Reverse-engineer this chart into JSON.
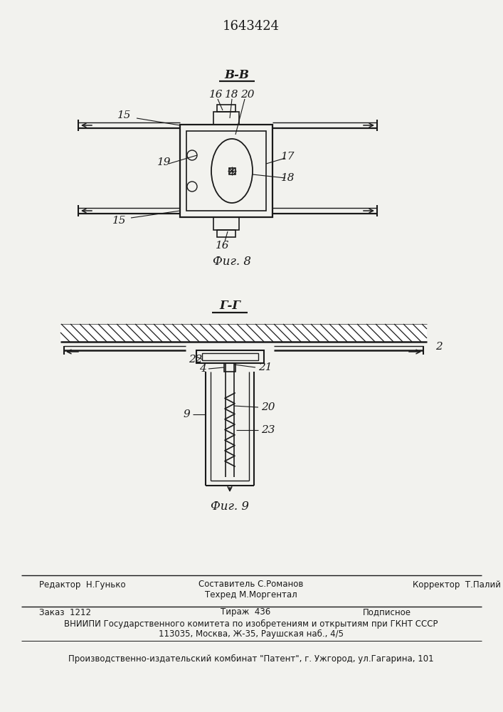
{
  "title": "1643424",
  "fig8_label": "В-В",
  "fig8_caption": "Фиг. 8",
  "fig9_label": "Г-Г",
  "fig9_caption": "Фиг. 9",
  "footer_sestavitel": "Составитель С.Романов",
  "footer_tekhred": "Техред М.Моргентал",
  "footer_redaktor": "Редактор  Н.Гунько",
  "footer_korrektor": "Корректор  Т.Палий",
  "footer_zakaz": "Заказ  1212",
  "footer_tirazh": "Тираж  436",
  "footer_podpisnoe": "Подписное",
  "footer_vniipи": "ВНИИПИ Государственного комитета по изобретениям и открытиям при ГКНТ СССР",
  "footer_addr": "113035, Москва, Ж-35, Раушская наб., 4/5",
  "footer_patent": "Производственно-издательский комбинат \"Патент\", г. Ужгород, ул.Гагарина, 101",
  "bg_color": "#f2f2ee"
}
